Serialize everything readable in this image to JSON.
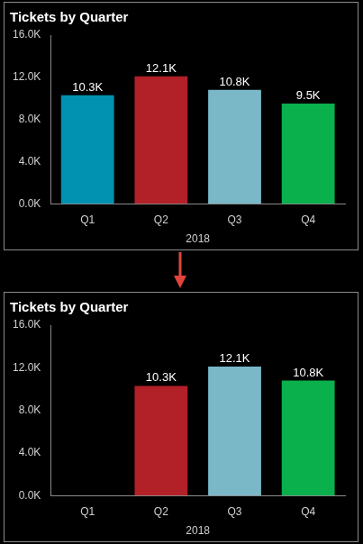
{
  "chart_data": [
    {
      "type": "bar",
      "title": "Tickets by Quarter",
      "categories": [
        "Q1",
        "Q2",
        "Q3",
        "Q4"
      ],
      "xlabel": "2018",
      "values": [
        10300,
        12100,
        10800,
        9500
      ],
      "value_labels": [
        "10.3K",
        "12.1K",
        "10.8K",
        "9.5K"
      ],
      "colors": [
        "#0092b0",
        "#b22028",
        "#7ab8c8",
        "#0ab04c"
      ],
      "ylim": [
        0,
        16000
      ],
      "yticks": [
        {
          "value": 0,
          "label": "0.0K"
        },
        {
          "value": 4000,
          "label": "4.0K"
        },
        {
          "value": 8000,
          "label": "8.0K"
        },
        {
          "value": 12000,
          "label": "12.0K"
        },
        {
          "value": 16000,
          "label": "16.0K"
        }
      ],
      "grid": false,
      "data_labels": true
    },
    {
      "type": "bar",
      "title": "Tickets by Quarter",
      "categories": [
        "Q1",
        "Q2",
        "Q3",
        "Q4"
      ],
      "xlabel": "2018",
      "values": [
        null,
        10300,
        12100,
        10800
      ],
      "value_labels": [
        null,
        "10.3K",
        "12.1K",
        "10.8K"
      ],
      "colors": [
        null,
        "#b22028",
        "#7ab8c8",
        "#0ab04c"
      ],
      "ylim": [
        0,
        16000
      ],
      "yticks": [
        {
          "value": 0,
          "label": "0.0K"
        },
        {
          "value": 4000,
          "label": "4.0K"
        },
        {
          "value": 8000,
          "label": "8.0K"
        },
        {
          "value": 12000,
          "label": "12.0K"
        },
        {
          "value": 16000,
          "label": "16.0K"
        }
      ],
      "grid": false,
      "data_labels": true
    }
  ]
}
